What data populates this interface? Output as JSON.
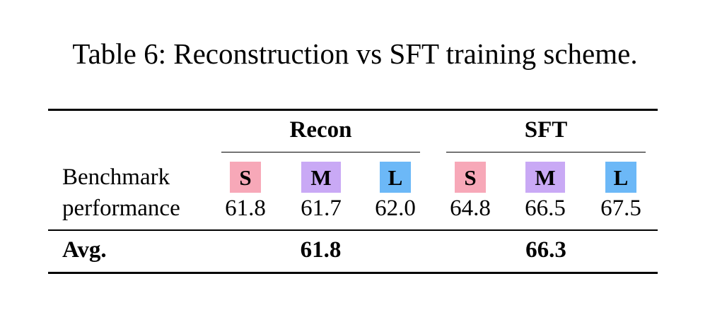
{
  "caption": "Table 6: Reconstruction vs SFT training scheme.",
  "table": {
    "groups": [
      {
        "name": "Recon",
        "sizes": [
          {
            "label": "S",
            "color": "#f7a8b8",
            "value": "61.8"
          },
          {
            "label": "M",
            "color": "#c9a9f5",
            "value": "61.7"
          },
          {
            "label": "L",
            "color": "#6cb8f7",
            "value": "62.0"
          }
        ],
        "avg": "61.8"
      },
      {
        "name": "SFT",
        "sizes": [
          {
            "label": "S",
            "color": "#f7a8b8",
            "value": "64.8"
          },
          {
            "label": "M",
            "color": "#c9a9f5",
            "value": "66.5"
          },
          {
            "label": "L",
            "color": "#6cb8f7",
            "value": "67.5"
          }
        ],
        "avg": "66.3"
      }
    ],
    "row_label_line1": "Benchmark",
    "row_label_line2": "performance",
    "avg_label": "Avg."
  }
}
